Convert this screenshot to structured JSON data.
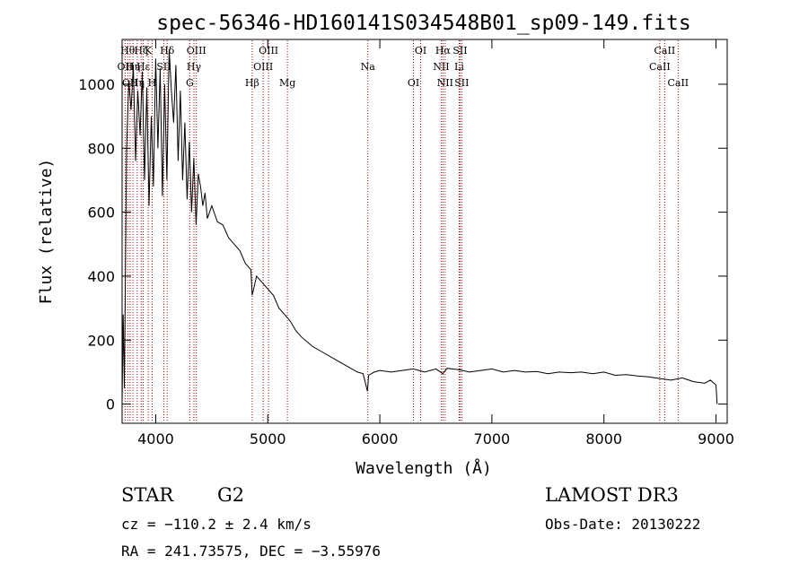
{
  "chart_data": {
    "type": "line",
    "title": "spec-56346-HD160141S034548B01_sp09-149.fits",
    "xlabel": "Wavelength (Å)",
    "ylabel": "Flux (relative)",
    "xlim": [
      3700,
      9100
    ],
    "ylim": [
      -60,
      1140
    ],
    "x_ticks": [
      4000,
      5000,
      6000,
      7000,
      8000,
      9000
    ],
    "y_ticks": [
      0,
      200,
      400,
      600,
      800,
      1000
    ],
    "grid": false,
    "series": [
      {
        "name": "flux",
        "x": [
          3700,
          3710,
          3720,
          3740,
          3760,
          3780,
          3800,
          3820,
          3840,
          3860,
          3880,
          3900,
          3920,
          3940,
          3960,
          3980,
          4000,
          4020,
          4040,
          4060,
          4080,
          4100,
          4120,
          4140,
          4160,
          4180,
          4200,
          4220,
          4240,
          4260,
          4280,
          4300,
          4320,
          4340,
          4360,
          4380,
          4400,
          4420,
          4440,
          4460,
          4480,
          4500,
          4550,
          4600,
          4650,
          4700,
          4750,
          4800,
          4850,
          4861,
          4900,
          4950,
          5000,
          5050,
          5100,
          5150,
          5200,
          5250,
          5300,
          5400,
          5500,
          5600,
          5700,
          5800,
          5850,
          5890,
          5900,
          5950,
          6000,
          6100,
          6200,
          6300,
          6400,
          6500,
          6563,
          6600,
          6700,
          6800,
          6900,
          7000,
          7100,
          7200,
          7300,
          7400,
          7500,
          7600,
          7700,
          7800,
          7900,
          8000,
          8100,
          8200,
          8300,
          8400,
          8500,
          8600,
          8700,
          8800,
          8900,
          8950,
          9000,
          9010
        ],
        "values": [
          0,
          280,
          50,
          800,
          1010,
          920,
          1060,
          760,
          980,
          840,
          1040,
          700,
          990,
          620,
          900,
          680,
          1080,
          800,
          1050,
          650,
          1000,
          700,
          1110,
          980,
          880,
          1060,
          760,
          980,
          700,
          880,
          640,
          820,
          600,
          770,
          560,
          720,
          680,
          620,
          660,
          580,
          600,
          620,
          570,
          560,
          520,
          500,
          480,
          440,
          420,
          340,
          400,
          380,
          360,
          340,
          300,
          280,
          260,
          230,
          210,
          180,
          160,
          140,
          120,
          100,
          95,
          40,
          90,
          100,
          105,
          100,
          105,
          110,
          100,
          110,
          95,
          112,
          108,
          100,
          105,
          110,
          100,
          105,
          100,
          102,
          95,
          100,
          98,
          100,
          95,
          100,
          90,
          92,
          88,
          85,
          80,
          75,
          82,
          70,
          65,
          75,
          60,
          0
        ]
      }
    ],
    "lines": [
      {
        "x": 3727,
        "label": "OII",
        "row": 2
      },
      {
        "x": 3750,
        "label": "Hθ",
        "row": 1
      },
      {
        "x": 3771,
        "label": "OII",
        "row": 3
      },
      {
        "x": 3797,
        "label": "Hη",
        "row": 2
      },
      {
        "x": 3835,
        "label": "Hη",
        "row": 3
      },
      {
        "x": 3870,
        "label": "Hζ",
        "row": 1
      },
      {
        "x": 3889,
        "label": "Hε",
        "row": 2
      },
      {
        "x": 3933,
        "label": "K",
        "row": 1
      },
      {
        "x": 3968,
        "label": "H",
        "row": 3
      },
      {
        "x": 4072,
        "label": "SII",
        "row": 2
      },
      {
        "x": 4102,
        "label": "Hδ",
        "row": 1
      },
      {
        "x": 4304,
        "label": "G",
        "row": 3
      },
      {
        "x": 4341,
        "label": "Hγ",
        "row": 2
      },
      {
        "x": 4363,
        "label": "OIII",
        "row": 1
      },
      {
        "x": 4861,
        "label": "Hβ",
        "row": 3
      },
      {
        "x": 4959,
        "label": "OIII",
        "row": 2
      },
      {
        "x": 5007,
        "label": "OIII",
        "row": 1
      },
      {
        "x": 5175,
        "label": "Mg",
        "row": 3
      },
      {
        "x": 5893,
        "label": "Na",
        "row": 2
      },
      {
        "x": 6300,
        "label": "OI",
        "row": 3
      },
      {
        "x": 6364,
        "label": "OI",
        "row": 1
      },
      {
        "x": 6548,
        "label": "NII",
        "row": 2
      },
      {
        "x": 6563,
        "label": "Hα",
        "row": 1
      },
      {
        "x": 6583,
        "label": "NII",
        "row": 3
      },
      {
        "x": 6708,
        "label": "Li",
        "row": 2
      },
      {
        "x": 6716,
        "label": "SII",
        "row": 1
      },
      {
        "x": 6731,
        "label": "SII",
        "row": 3
      },
      {
        "x": 8498,
        "label": "CaII",
        "row": 2
      },
      {
        "x": 8542,
        "label": "CaII",
        "row": 1
      },
      {
        "x": 8662,
        "label": "CaII",
        "row": 3
      }
    ]
  },
  "info": {
    "class_label": "STAR",
    "subclass": "G2",
    "survey": "LAMOST DR3",
    "cz": "cz = −110.2 ± 2.4 km/s",
    "obs_date": "Obs-Date: 20130222",
    "coords": "RA = 241.73575, DEC =  −3.55976"
  },
  "colors": {
    "line_marker": "#b00000",
    "spectrum": "#000000"
  }
}
